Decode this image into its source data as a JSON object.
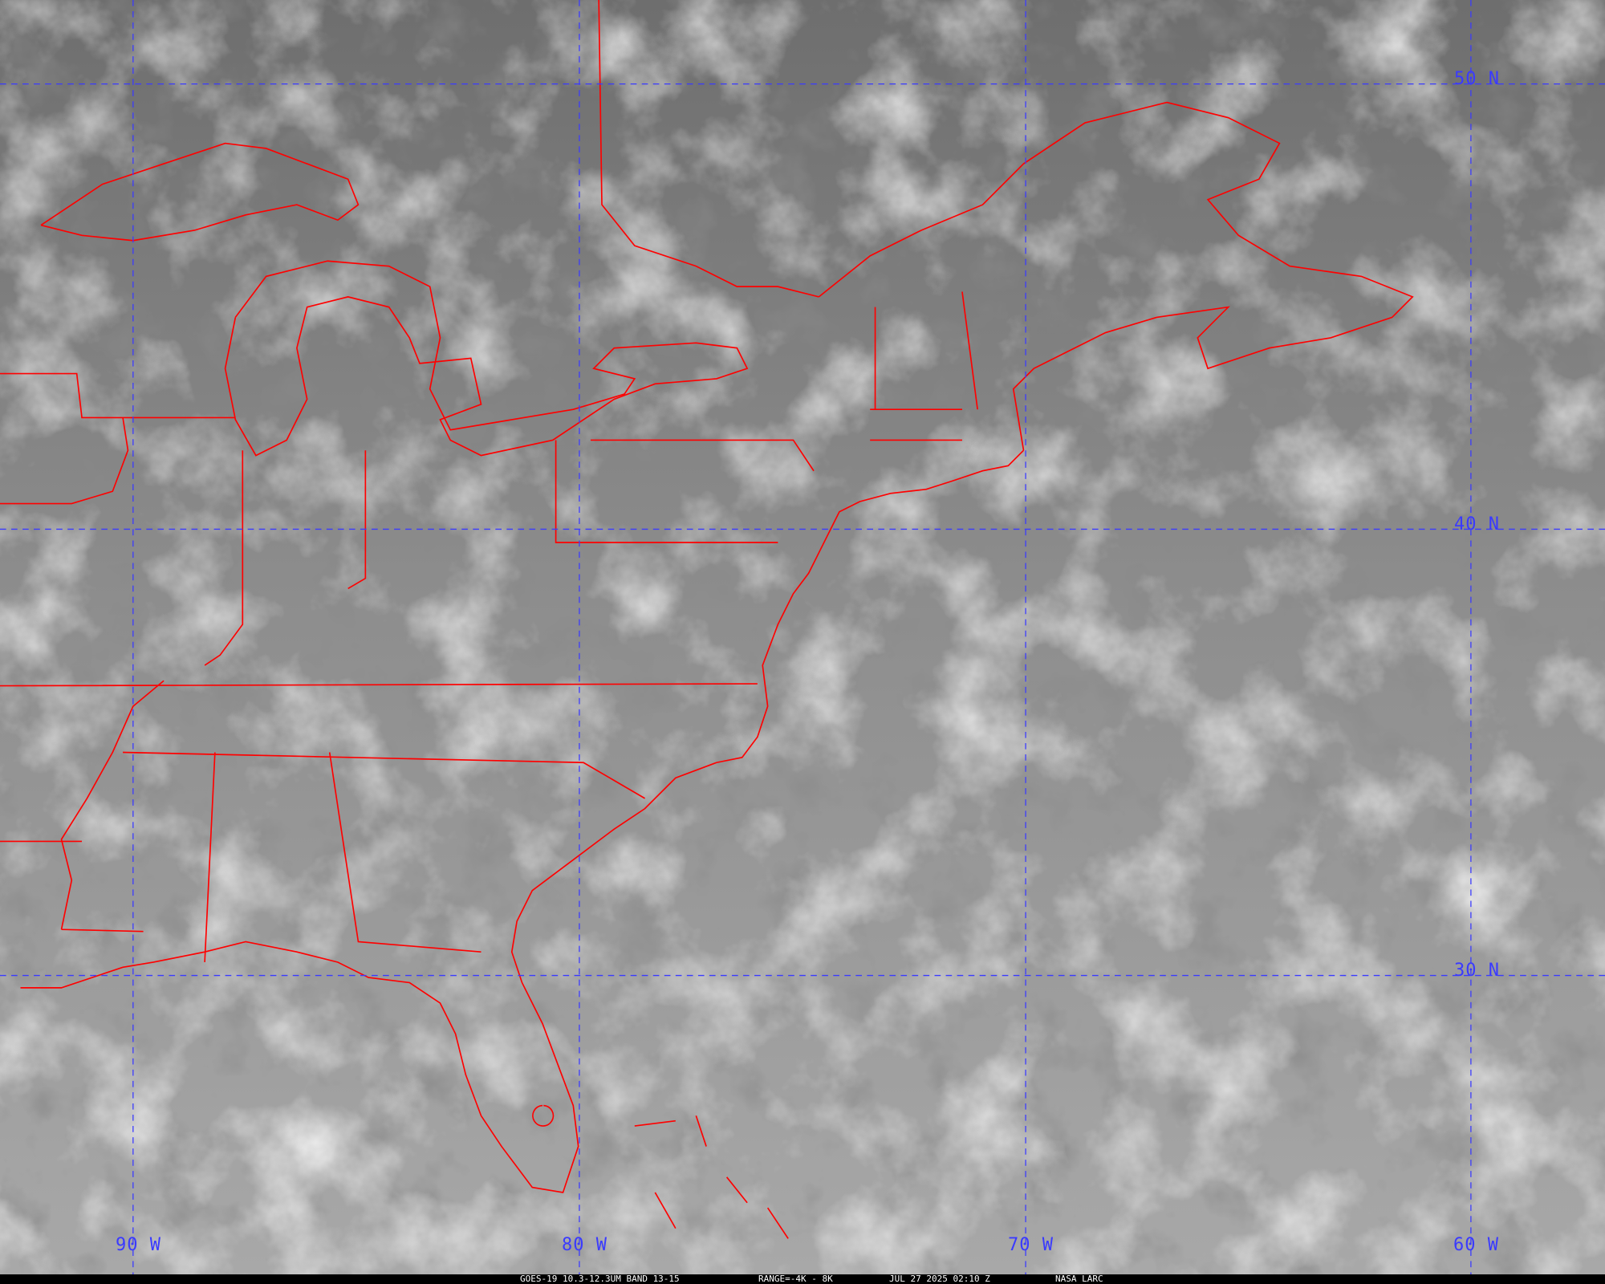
{
  "map": {
    "grid_color": "#3a3aff",
    "boundary_color": "#ff0000",
    "lat_labels": [
      "50 N",
      "40 N",
      "30 N"
    ],
    "lon_labels": [
      "90 W",
      "80 W",
      "70 W",
      "60 W"
    ]
  },
  "footer": {
    "satellite": "GOES-19 10.3-12.3UM BAND 13-15",
    "range": "RANGE=-4K - 8K",
    "datetime": "JUL 27 2025 02:10 Z",
    "source": "NASA LARC"
  }
}
